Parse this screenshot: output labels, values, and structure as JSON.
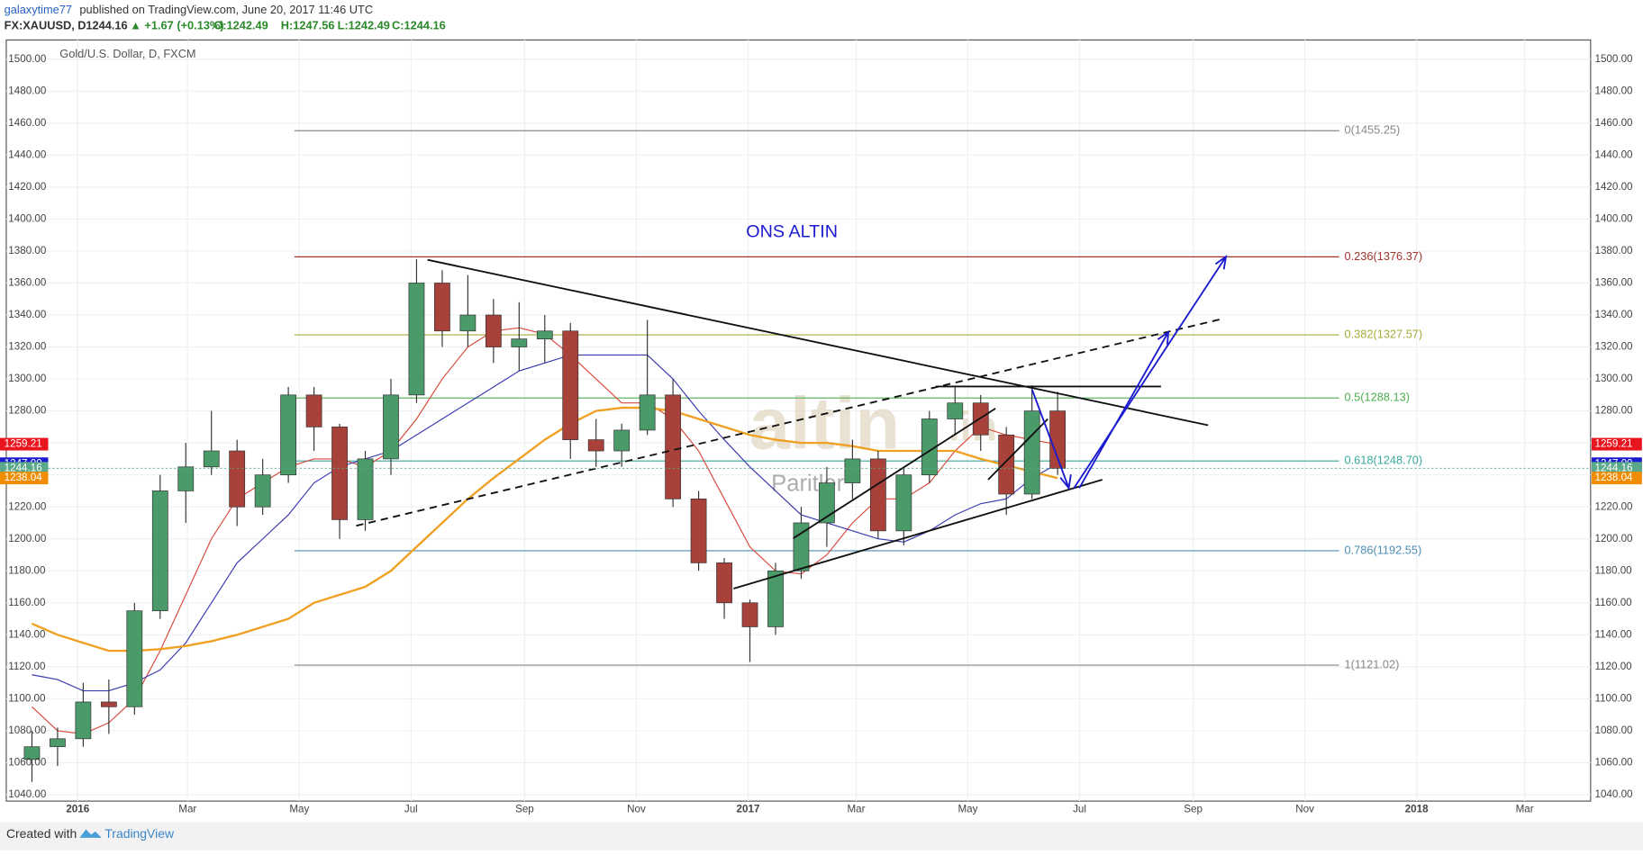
{
  "header": {
    "author": "galaxytime77",
    "published": "published on TradingView.com, June 20, 2017 11:46 UTC",
    "symbol": "FX:XAUUSD, D",
    "last": "1244.16",
    "change": "▲ +1.67 (+0.13%)",
    "open": "O:1242.49",
    "high": "H:1247.56",
    "low": "L:1242.49",
    "close": "C:1244.16"
  },
  "footer": {
    "created": "Created with",
    "brand": "TradingView"
  },
  "chart_data": {
    "type": "candlestick",
    "legend_title": "Gold/U.S. Dollar, D, FXCM",
    "annotation": "ONS ALTIN",
    "watermark": [
      "altin",
      ".in",
      "Paritler"
    ],
    "up_color": "#4a9a6a",
    "down_color": "#a8413a",
    "x": [
      -25,
      -11,
      3,
      17,
      31,
      45,
      59,
      73,
      87,
      101,
      115,
      129,
      143,
      157,
      171,
      185,
      199,
      213,
      227,
      241,
      255,
      269,
      283,
      297,
      311,
      325,
      339,
      353,
      367,
      381,
      395,
      409,
      423,
      437,
      451,
      465,
      479,
      493,
      507,
      521,
      535
    ],
    "open": [
      1062,
      1070,
      1075,
      1098,
      1095,
      1155,
      1230,
      1245,
      1255,
      1220,
      1240,
      1290,
      1270,
      1212,
      1250,
      1290,
      1360,
      1330,
      1340,
      1320,
      1325,
      1330,
      1262,
      1255,
      1268,
      1290,
      1225,
      1185,
      1160,
      1145,
      1180,
      1210,
      1235,
      1250,
      1205,
      1240,
      1275,
      1285,
      1265,
      1228,
      1280
    ],
    "high": [
      1080,
      1082,
      1110,
      1112,
      1160,
      1240,
      1260,
      1280,
      1262,
      1250,
      1295,
      1295,
      1272,
      1255,
      1300,
      1375,
      1368,
      1365,
      1350,
      1348,
      1340,
      1335,
      1275,
      1272,
      1337,
      1300,
      1230,
      1188,
      1162,
      1185,
      1220,
      1245,
      1262,
      1255,
      1245,
      1280,
      1296,
      1290,
      1270,
      1296,
      1292
    ],
    "low": [
      1048,
      1058,
      1070,
      1078,
      1090,
      1150,
      1210,
      1240,
      1208,
      1215,
      1235,
      1255,
      1200,
      1205,
      1240,
      1285,
      1320,
      1320,
      1310,
      1305,
      1310,
      1250,
      1245,
      1245,
      1265,
      1220,
      1180,
      1150,
      1123,
      1140,
      1175,
      1195,
      1225,
      1200,
      1196,
      1235,
      1265,
      1255,
      1215,
      1225,
      1240
    ],
    "close": [
      1070,
      1075,
      1098,
      1095,
      1155,
      1230,
      1245,
      1255,
      1220,
      1240,
      1290,
      1270,
      1212,
      1250,
      1290,
      1360,
      1330,
      1340,
      1320,
      1325,
      1330,
      1262,
      1255,
      1268,
      1290,
      1225,
      1185,
      1160,
      1145,
      1180,
      1210,
      1235,
      1250,
      1205,
      1240,
      1275,
      1285,
      1265,
      1228,
      1280,
      1244
    ],
    "series": [
      {
        "color": "#d9493c",
        "values": [
          1095,
          1080,
          1078,
          1085,
          1100,
          1130,
          1165,
          1200,
          1225,
          1235,
          1245,
          1250,
          1250,
          1245,
          1255,
          1275,
          1300,
          1320,
          1330,
          1332,
          1328,
          1315,
          1300,
          1285,
          1285,
          1275,
          1255,
          1225,
          1195,
          1180,
          1178,
          1190,
          1210,
          1225,
          1225,
          1235,
          1255,
          1270,
          1265,
          1262,
          1259
        ]
      },
      {
        "color": "#3a3ab0",
        "values": [
          1115,
          1112,
          1105,
          1105,
          1110,
          1118,
          1135,
          1160,
          1185,
          1200,
          1215,
          1235,
          1245,
          1250,
          1255,
          1265,
          1275,
          1285,
          1295,
          1305,
          1310,
          1315,
          1315,
          1315,
          1315,
          1300,
          1280,
          1262,
          1245,
          1230,
          1215,
          1210,
          1205,
          1200,
          1198,
          1205,
          1215,
          1222,
          1225,
          1238,
          1247
        ]
      },
      {
        "color": "#f0a020",
        "values": [
          1147,
          1140,
          1135,
          1130,
          1130,
          1131,
          1133,
          1136,
          1140,
          1145,
          1150,
          1160,
          1165,
          1170,
          1180,
          1195,
          1210,
          1225,
          1238,
          1250,
          1262,
          1272,
          1280,
          1282,
          1282,
          1280,
          1275,
          1270,
          1265,
          1262,
          1260,
          1260,
          1258,
          1255,
          1255,
          1255,
          1255,
          1250,
          1246,
          1242,
          1238
        ]
      }
    ],
    "fib_levels": [
      {
        "value": 1455.25,
        "label": "0(1455.25)",
        "color": "#888888"
      },
      {
        "value": 1376.37,
        "label": "0.236(1376.37)",
        "color": "#a0342f"
      },
      {
        "value": 1327.57,
        "label": "0.382(1327.57)",
        "color": "#a7ab3a"
      },
      {
        "value": 1288.13,
        "label": "0.5(1288.13)",
        "color": "#4caf50"
      },
      {
        "value": 1248.7,
        "label": "0.618(1248.70)",
        "color": "#35a99a"
      },
      {
        "value": 1192.55,
        "label": "0.786(1192.55)",
        "color": "#4b8fb5"
      },
      {
        "value": 1121.02,
        "label": "1(1121.02)",
        "color": "#888888"
      }
    ],
    "price_tags": [
      {
        "value": 1259.21,
        "label": "1259.21",
        "color": "#e8141e"
      },
      {
        "value": 1247,
        "label": "1247.00",
        "color": "#1a1ad0"
      },
      {
        "value": 1244.16,
        "label": "1244.16",
        "color": "#5aa88a"
      },
      {
        "value": 1238.04,
        "label": "1238.04",
        "color": "#f08c00"
      }
    ],
    "xlim": [
      -39,
      826
    ],
    "xticks": [
      {
        "value": 0,
        "label": "2016"
      },
      {
        "value": 60,
        "label": "Mar"
      },
      {
        "value": 121,
        "label": "May"
      },
      {
        "value": 182,
        "label": "Jul"
      },
      {
        "value": 244,
        "label": "Sep"
      },
      {
        "value": 305,
        "label": "Nov"
      },
      {
        "value": 366,
        "label": "2017"
      },
      {
        "value": 425,
        "label": "Mar"
      },
      {
        "value": 486,
        "label": "May"
      },
      {
        "value": 547,
        "label": "Jul"
      },
      {
        "value": 609,
        "label": "Sep"
      },
      {
        "value": 670,
        "label": "Nov"
      },
      {
        "value": 731,
        "label": "2018"
      },
      {
        "value": 790,
        "label": "Mar"
      }
    ],
    "ylim": [
      1036,
      1512
    ],
    "yticks": [
      {
        "value": 1040,
        "label": "1040.00"
      },
      {
        "value": 1060,
        "label": "1060.00"
      },
      {
        "value": 1080,
        "label": "1080.00"
      },
      {
        "value": 1100,
        "label": "1100.00"
      },
      {
        "value": 1120,
        "label": "1120.00"
      },
      {
        "value": 1140,
        "label": "1140.00"
      },
      {
        "value": 1160,
        "label": "1160.00"
      },
      {
        "value": 1180,
        "label": "1180.00"
      },
      {
        "value": 1200,
        "label": "1200.00"
      },
      {
        "value": 1220,
        "label": "1220.00"
      },
      {
        "value": 1240,
        "label": "1240.00"
      },
      {
        "value": 1260,
        "label": "1260.00"
      },
      {
        "value": 1280,
        "label": "1280.00"
      },
      {
        "value": 1300,
        "label": "1300.00"
      },
      {
        "value": 1320,
        "label": "1320.00"
      },
      {
        "value": 1340,
        "label": "1340.00"
      },
      {
        "value": 1360,
        "label": "1360.00"
      },
      {
        "value": 1380,
        "label": "1380.00"
      },
      {
        "value": 1400,
        "label": "1400.00"
      },
      {
        "value": 1420,
        "label": "1420.00"
      },
      {
        "value": 1440,
        "label": "1440.00"
      },
      {
        "value": 1460,
        "label": "1460.00"
      },
      {
        "value": 1480,
        "label": "1480.00"
      },
      {
        "value": 1500,
        "label": "1500.00"
      }
    ],
    "grid": true
  }
}
